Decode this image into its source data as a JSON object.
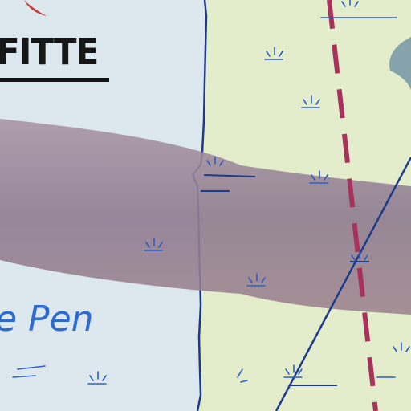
{
  "map": {
    "colors": {
      "water": "#dde8ee",
      "land": "#e3edcc",
      "coastline": "#1e3a8c",
      "route_band": "#8c7a8e",
      "dashed_boundary": "#a8325c",
      "marsh_symbol": "#2e5ec6",
      "label_dark": "#161616",
      "label_blue": "#2e6bd0",
      "accent_red": "#c0403a",
      "grey_feature": "#86a3ab"
    },
    "labels": {
      "place_name": "FITTE",
      "area_name": "e Pen"
    },
    "features": {
      "route_band": "wide-route-band",
      "boundary_line": "dashed-boundary",
      "diagonal_line": "road-line",
      "coastline": "coastline",
      "marsh_symbol": "marsh-icon"
    }
  }
}
